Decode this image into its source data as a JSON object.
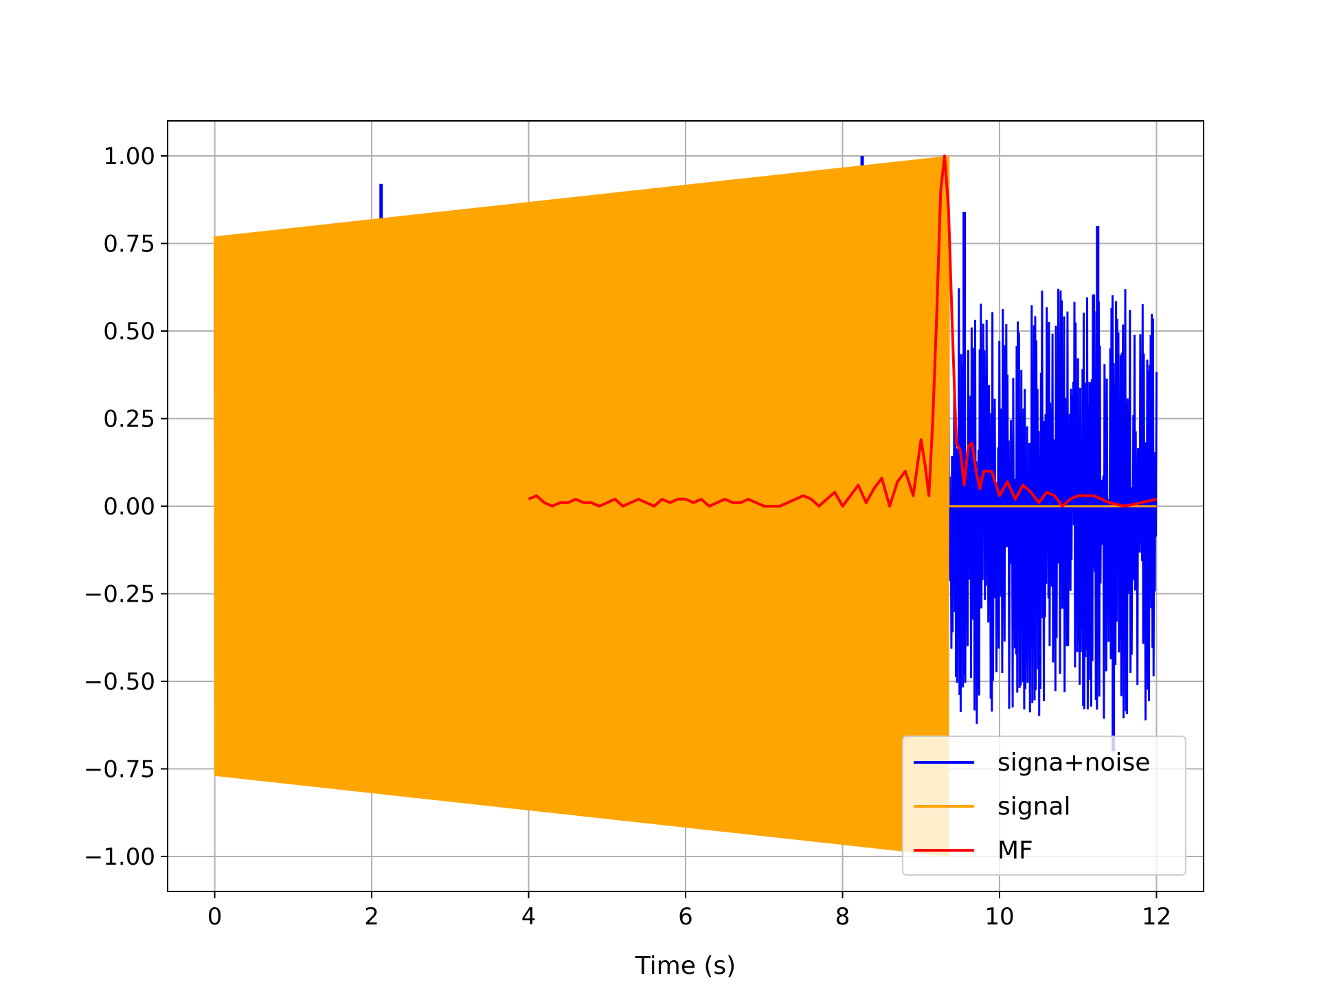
{
  "chart_data": {
    "type": "line",
    "title": "",
    "xlabel": "Time (s)",
    "ylabel": "",
    "xlim": [
      -0.6,
      12.6
    ],
    "ylim": [
      -1.1,
      1.1
    ],
    "xticks": [
      0,
      2,
      4,
      6,
      8,
      10,
      12
    ],
    "xtick_labels": [
      "0",
      "2",
      "4",
      "6",
      "8",
      "10",
      "12"
    ],
    "yticks": [
      1.0,
      0.75,
      0.5,
      0.25,
      0.0,
      -0.25,
      -0.5,
      -0.75,
      -1.0
    ],
    "ytick_labels": [
      "1.00",
      "0.75",
      "0.50",
      "0.25",
      "0.00",
      "−0.25",
      "−0.50",
      "−0.75",
      "−1.00"
    ],
    "grid": true,
    "legend_position": "lower right",
    "series": [
      {
        "name": "signa+noise",
        "color": "#0000ff",
        "kind": "oscillation_then_noise",
        "x_start": 0,
        "x_end": 12,
        "chirp_end": 9.35,
        "amp_start": 0.77,
        "amp_end": 1.0,
        "noise_spikes": [
          {
            "x": 2.12,
            "y": 0.92
          },
          {
            "x": 8.25,
            "y": 1.0
          },
          {
            "x": 9.55,
            "y": 0.84
          },
          {
            "x": 11.25,
            "y": 0.8
          },
          {
            "x": 8.45,
            "y": -0.97
          },
          {
            "x": 11.45,
            "y": -0.7
          }
        ]
      },
      {
        "name": "signal",
        "color": "#ffa500",
        "kind": "chirp",
        "x_start": 0,
        "x_end": 9.35,
        "amp_start": 0.77,
        "amp_end": 1.0,
        "tail_x_end": 12,
        "tail_value": 0.0
      },
      {
        "name": "MF",
        "color": "#ff0000",
        "kind": "matched_filter",
        "x": [
          4.0,
          4.1,
          4.2,
          4.3,
          4.4,
          4.5,
          4.6,
          4.7,
          4.8,
          4.9,
          5.0,
          5.1,
          5.2,
          5.3,
          5.4,
          5.5,
          5.6,
          5.7,
          5.8,
          5.9,
          6.0,
          6.1,
          6.2,
          6.3,
          6.4,
          6.5,
          6.6,
          6.7,
          6.8,
          6.9,
          7.0,
          7.1,
          7.2,
          7.3,
          7.4,
          7.5,
          7.6,
          7.7,
          7.8,
          7.9,
          8.0,
          8.1,
          8.2,
          8.3,
          8.4,
          8.5,
          8.6,
          8.7,
          8.8,
          8.9,
          9.0,
          9.05,
          9.1,
          9.15,
          9.2,
          9.25,
          9.3,
          9.35,
          9.4,
          9.45,
          9.5,
          9.55,
          9.6,
          9.65,
          9.7,
          9.75,
          9.8,
          9.9,
          10.0,
          10.1,
          10.2,
          10.3,
          10.4,
          10.5,
          10.6,
          10.7,
          10.8,
          10.9,
          11.0,
          11.2,
          11.4,
          11.6,
          11.8,
          12.0
        ],
        "y": [
          0.02,
          0.03,
          0.01,
          0.0,
          0.01,
          0.01,
          0.02,
          0.01,
          0.01,
          0.0,
          0.01,
          0.02,
          0.0,
          0.01,
          0.02,
          0.01,
          0.0,
          0.02,
          0.01,
          0.02,
          0.02,
          0.01,
          0.02,
          0.0,
          0.01,
          0.02,
          0.01,
          0.01,
          0.02,
          0.01,
          0.0,
          0.0,
          0.0,
          0.01,
          0.02,
          0.03,
          0.02,
          0.0,
          0.02,
          0.04,
          0.0,
          0.03,
          0.06,
          0.01,
          0.05,
          0.08,
          0.0,
          0.07,
          0.1,
          0.03,
          0.19,
          0.12,
          0.03,
          0.25,
          0.55,
          0.9,
          1.0,
          0.85,
          0.5,
          0.18,
          0.16,
          0.06,
          0.17,
          0.18,
          0.1,
          0.05,
          0.1,
          0.1,
          0.03,
          0.07,
          0.02,
          0.06,
          0.04,
          0.01,
          0.04,
          0.03,
          0.0,
          0.02,
          0.03,
          0.03,
          0.01,
          0.0,
          0.01,
          0.02
        ]
      }
    ]
  }
}
